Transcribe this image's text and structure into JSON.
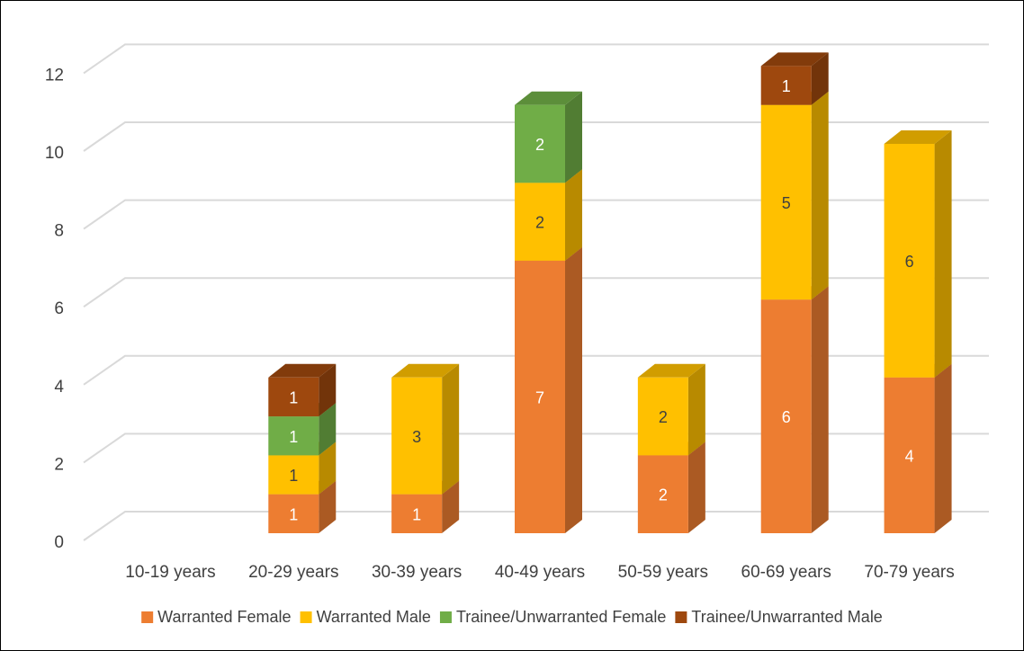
{
  "chart_data": {
    "type": "bar",
    "stacked": true,
    "three_d": true,
    "categories": [
      "10-19 years",
      "20-29 years",
      "30-39 years",
      "40-49 years",
      "50-59 years",
      "60-69 years",
      "70-79 years"
    ],
    "series": [
      {
        "name": "Warranted Female",
        "color": "#ED7D31",
        "values": [
          0,
          1,
          1,
          7,
          2,
          6,
          4
        ]
      },
      {
        "name": "Warranted Male",
        "color": "#FFC000",
        "values": [
          0,
          1,
          3,
          2,
          2,
          5,
          6
        ]
      },
      {
        "name": "Trainee/Unwarranted Female",
        "color": "#70AD47",
        "values": [
          0,
          1,
          0,
          2,
          0,
          0,
          0
        ]
      },
      {
        "name": "Trainee/Unwarranted Male",
        "color": "#9E480E",
        "values": [
          0,
          1,
          0,
          0,
          0,
          1,
          0
        ]
      }
    ],
    "ylim": [
      0,
      12
    ],
    "yticks": [
      0,
      2,
      4,
      6,
      8,
      10,
      12
    ],
    "grid": true,
    "legend": "bottom"
  }
}
